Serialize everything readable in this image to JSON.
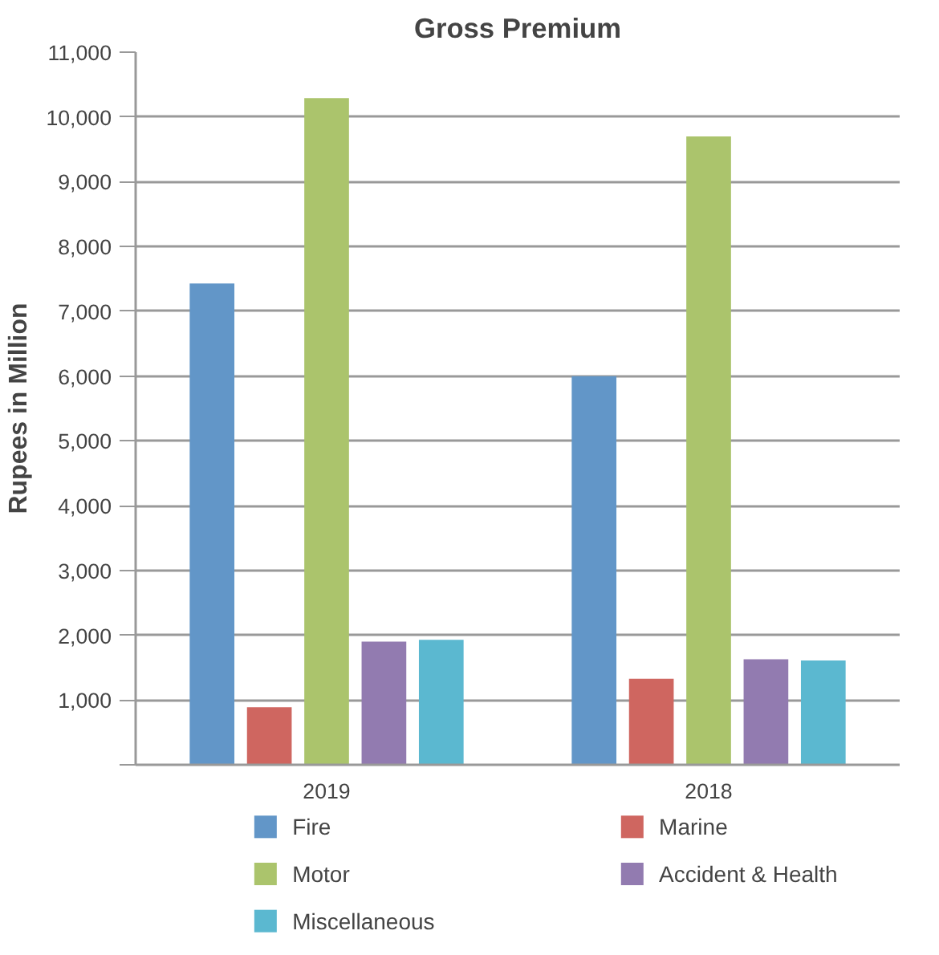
{
  "chart_data": {
    "type": "bar",
    "title": "Gross Premium",
    "ylabel": "Rupees in Million",
    "categories": [
      "2019",
      "2018"
    ],
    "series": [
      {
        "name": "Fire",
        "color": "#6296c8",
        "values": [
          7430,
          6000
        ]
      },
      {
        "name": "Marine",
        "color": "#cf6660",
        "values": [
          890,
          1330
        ]
      },
      {
        "name": "Motor",
        "color": "#abc46c",
        "values": [
          10290,
          9700
        ]
      },
      {
        "name": "Accident & Health",
        "color": "#927bb0",
        "values": [
          1900,
          1630
        ]
      },
      {
        "name": "Miscellaneous",
        "color": "#5bb8d0",
        "values": [
          1930,
          1610
        ]
      }
    ],
    "ylim": [
      0,
      11000
    ],
    "yticks": [
      {
        "value": 0,
        "label": null
      },
      {
        "value": 1000,
        "label": "1,000"
      },
      {
        "value": 2000,
        "label": "2,000"
      },
      {
        "value": 3000,
        "label": "3,000"
      },
      {
        "value": 4000,
        "label": "4,000"
      },
      {
        "value": 5000,
        "label": "5,000"
      },
      {
        "value": 6000,
        "label": "6,000"
      },
      {
        "value": 7000,
        "label": "7,000"
      },
      {
        "value": 8000,
        "label": "8,000"
      },
      {
        "value": 9000,
        "label": "9,000"
      },
      {
        "value": 10000,
        "label": "10,000"
      },
      {
        "value": 11000,
        "label": "11,000"
      }
    ],
    "grid": "y",
    "legend": "bottom"
  }
}
